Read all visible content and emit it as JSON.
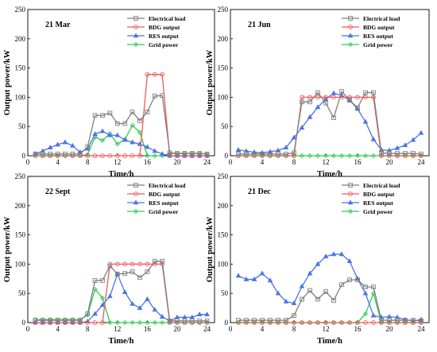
{
  "chart_data": [
    {
      "type": "line",
      "title": "21 Mar",
      "xlabel": "Time/h",
      "ylabel": "Output power/kW",
      "xlim": [
        0,
        25
      ],
      "ylim": [
        0,
        250
      ],
      "xticks": [
        0,
        4,
        8,
        12,
        16,
        20,
        24
      ],
      "yticks": [
        0,
        50,
        100,
        150,
        200,
        250
      ],
      "legend_position": "top-right",
      "x": [
        1,
        2,
        3,
        4,
        5,
        6,
        7,
        8,
        9,
        10,
        11,
        12,
        13,
        14,
        15,
        16,
        17,
        18,
        19,
        20,
        21,
        22,
        23,
        24
      ],
      "series": [
        {
          "name": "Electrical load",
          "color": "#7f7f7f",
          "marker": "square",
          "values": [
            3,
            3,
            3,
            3,
            3,
            3,
            3,
            15,
            69,
            69,
            73,
            55,
            55,
            75,
            60,
            75,
            102,
            103,
            5,
            4,
            4,
            4,
            4,
            3
          ]
        },
        {
          "name": "BDG output",
          "color": "#f05a5a",
          "marker": "circle",
          "values": [
            0,
            0,
            0,
            0,
            0,
            0,
            0,
            0,
            0,
            0,
            0,
            0,
            0,
            0,
            0,
            139,
            139,
            139,
            0,
            0,
            0,
            0,
            0,
            0
          ]
        },
        {
          "name": "RES output",
          "color": "#4a74e8",
          "marker": "triangle",
          "values": [
            3,
            8,
            14,
            19,
            23,
            17,
            6,
            12,
            37,
            42,
            35,
            35,
            27,
            23,
            20,
            15,
            8,
            3,
            0,
            0,
            0,
            0,
            0,
            0
          ]
        },
        {
          "name": "Grid power",
          "color": "#2ecc52",
          "marker": "diamond",
          "values": [
            0,
            0,
            0,
            0,
            0,
            0,
            0,
            2,
            32,
            26,
            38,
            20,
            28,
            52,
            40,
            0,
            0,
            0,
            4,
            4,
            4,
            4,
            4,
            3
          ]
        }
      ]
    },
    {
      "type": "line",
      "title": "21 Jun",
      "xlabel": "Time/h",
      "ylabel": "Output power/kW",
      "xlim": [
        0,
        25
      ],
      "ylim": [
        0,
        250
      ],
      "xticks": [
        0,
        4,
        8,
        12,
        16,
        20,
        24
      ],
      "yticks": [
        0,
        50,
        100,
        150,
        200,
        250
      ],
      "legend_position": "top-right",
      "x": [
        1,
        2,
        3,
        4,
        5,
        6,
        7,
        8,
        9,
        10,
        11,
        12,
        13,
        14,
        15,
        16,
        17,
        18,
        19,
        20,
        21,
        22,
        23,
        24
      ],
      "series": [
        {
          "name": "Electrical load",
          "color": "#7f7f7f",
          "marker": "square",
          "values": [
            3,
            3,
            3,
            3,
            3,
            3,
            3,
            5,
            92,
            92,
            108,
            90,
            65,
            110,
            95,
            82,
            108,
            108,
            5,
            4,
            4,
            4,
            4,
            3
          ]
        },
        {
          "name": "BDG output",
          "color": "#f05a5a",
          "marker": "circle",
          "values": [
            0,
            0,
            0,
            0,
            0,
            0,
            0,
            0,
            100,
            100,
            100,
            100,
            100,
            100,
            100,
            100,
            100,
            100,
            0,
            0,
            0,
            0,
            0,
            0
          ]
        },
        {
          "name": "RES output",
          "color": "#4a74e8",
          "marker": "triangle",
          "values": [
            10,
            8,
            6,
            5,
            7,
            9,
            14,
            31,
            48,
            66,
            83,
            97,
            107,
            103,
            95,
            80,
            58,
            28,
            10,
            9,
            13,
            18,
            27,
            39
          ]
        },
        {
          "name": "Grid power",
          "color": "#2ecc52",
          "marker": "diamond",
          "values": [
            0,
            0,
            0,
            0,
            0,
            0,
            0,
            0,
            0,
            0,
            0,
            0,
            0,
            0,
            0,
            0,
            0,
            0,
            0,
            0,
            0,
            0,
            0,
            0
          ]
        }
      ]
    },
    {
      "type": "line",
      "title": "22 Sept",
      "xlabel": "Time/h",
      "ylabel": "Output power/kW",
      "xlim": [
        0,
        25
      ],
      "ylim": [
        0,
        250
      ],
      "xticks": [
        0,
        4,
        8,
        12,
        16,
        20,
        24
      ],
      "yticks": [
        0,
        50,
        100,
        150,
        200,
        250
      ],
      "legend_position": "top-right",
      "x": [
        1,
        2,
        3,
        4,
        5,
        6,
        7,
        8,
        9,
        10,
        11,
        12,
        13,
        14,
        15,
        16,
        17,
        18,
        19,
        20,
        21,
        22,
        23,
        24
      ],
      "series": [
        {
          "name": "Electrical load",
          "color": "#7f7f7f",
          "marker": "square",
          "values": [
            4,
            4,
            4,
            4,
            4,
            4,
            4,
            15,
            72,
            72,
            97,
            83,
            84,
            87,
            77,
            87,
            105,
            105,
            3,
            3,
            3,
            3,
            3,
            3
          ]
        },
        {
          "name": "BDG output",
          "color": "#f05a5a",
          "marker": "circle",
          "values": [
            0,
            0,
            0,
            0,
            0,
            0,
            0,
            0,
            0,
            0,
            100,
            100,
            100,
            100,
            100,
            100,
            100,
            100,
            0,
            0,
            0,
            0,
            0,
            0
          ]
        },
        {
          "name": "RES output",
          "color": "#4a74e8",
          "marker": "triangle",
          "values": [
            0,
            0,
            0,
            0,
            0,
            0,
            0,
            2,
            15,
            30,
            45,
            83,
            52,
            32,
            25,
            40,
            22,
            10,
            3,
            9,
            9,
            9,
            14,
            14
          ]
        },
        {
          "name": "Grid power",
          "color": "#2ecc52",
          "marker": "diamond",
          "values": [
            5,
            5,
            5,
            5,
            5,
            5,
            5,
            13,
            57,
            42,
            0,
            0,
            0,
            0,
            0,
            0,
            0,
            0,
            0,
            0,
            0,
            0,
            0,
            0
          ]
        }
      ]
    },
    {
      "type": "line",
      "title": "21 Dec",
      "xlabel": "Time/h",
      "ylabel": "Output power/kW",
      "xlim": [
        0,
        25
      ],
      "ylim": [
        0,
        250
      ],
      "xticks": [
        0,
        4,
        8,
        12,
        16,
        20,
        24
      ],
      "yticks": [
        0,
        50,
        100,
        150,
        200,
        250
      ],
      "legend_position": "top-right",
      "x": [
        1,
        2,
        3,
        4,
        5,
        6,
        7,
        8,
        9,
        10,
        11,
        12,
        13,
        14,
        15,
        16,
        17,
        18,
        19,
        20,
        21,
        22,
        23,
        24
      ],
      "series": [
        {
          "name": "Electrical load",
          "color": "#7f7f7f",
          "marker": "square",
          "values": [
            4,
            4,
            4,
            4,
            4,
            4,
            4,
            12,
            40,
            55,
            40,
            53,
            38,
            65,
            73,
            73,
            61,
            61,
            4,
            4,
            4,
            4,
            4,
            3
          ]
        },
        {
          "name": "BDG output",
          "color": "#f05a5a",
          "marker": "circle",
          "values": [
            0,
            0,
            0,
            0,
            0,
            0,
            0,
            0,
            0,
            0,
            0,
            0,
            0,
            0,
            0,
            0,
            0,
            0,
            0,
            0,
            0,
            0,
            0,
            0
          ]
        },
        {
          "name": "RES output",
          "color": "#4a74e8",
          "marker": "triangle",
          "values": [
            80,
            74,
            74,
            84,
            72,
            50,
            36,
            33,
            62,
            84,
            100,
            113,
            117,
            117,
            105,
            75,
            50,
            12,
            9,
            10,
            9,
            5,
            3,
            5
          ]
        },
        {
          "name": "Grid power",
          "color": "#2ecc52",
          "marker": "diamond",
          "values": [
            0,
            0,
            0,
            0,
            0,
            0,
            0,
            0,
            0,
            0,
            0,
            0,
            0,
            0,
            0,
            0,
            15,
            50,
            0,
            0,
            0,
            0,
            0,
            0
          ]
        }
      ]
    }
  ]
}
